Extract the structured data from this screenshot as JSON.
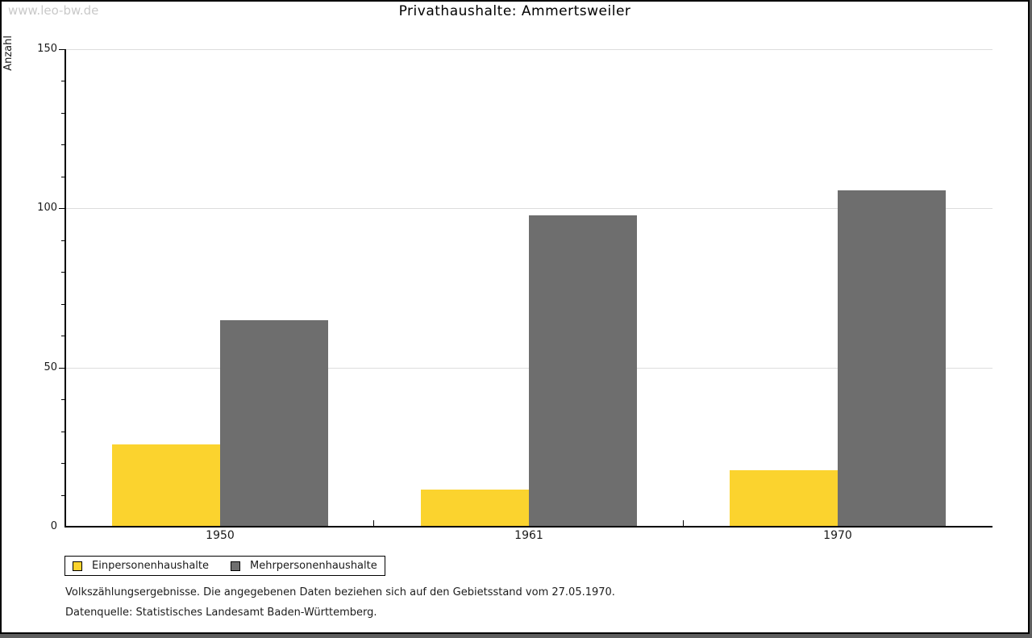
{
  "watermark": "www.leo-bw.de",
  "title": "Privathaushalte: Ammertsweiler",
  "chart_data": {
    "type": "bar",
    "title": "Privathaushalte: Ammertsweiler",
    "categories": [
      "1950",
      "1961",
      "1970"
    ],
    "series": [
      {
        "name": "Einpersonenhaushalte",
        "color": "#FBD32E",
        "values": [
          26,
          12,
          18
        ]
      },
      {
        "name": "Mehrpersonenhaushalte",
        "color": "#6E6E6E",
        "values": [
          65,
          98,
          106
        ]
      }
    ],
    "xlabel": "",
    "ylabel": "Anzahl",
    "ylim": [
      0,
      150
    ],
    "yticks_major": [
      0,
      50,
      100,
      150
    ],
    "ytick_minor_step": 10,
    "grid": true,
    "grid_color": "#dddddd",
    "legend_position": "bottom-left"
  },
  "footnotes": {
    "line1": "Volkszählungsergebnisse. Die angegebenen Daten beziehen sich auf den Gebietsstand vom 27.05.1970.",
    "line2": "Datenquelle: Statistisches Landesamt Baden-Württemberg."
  }
}
